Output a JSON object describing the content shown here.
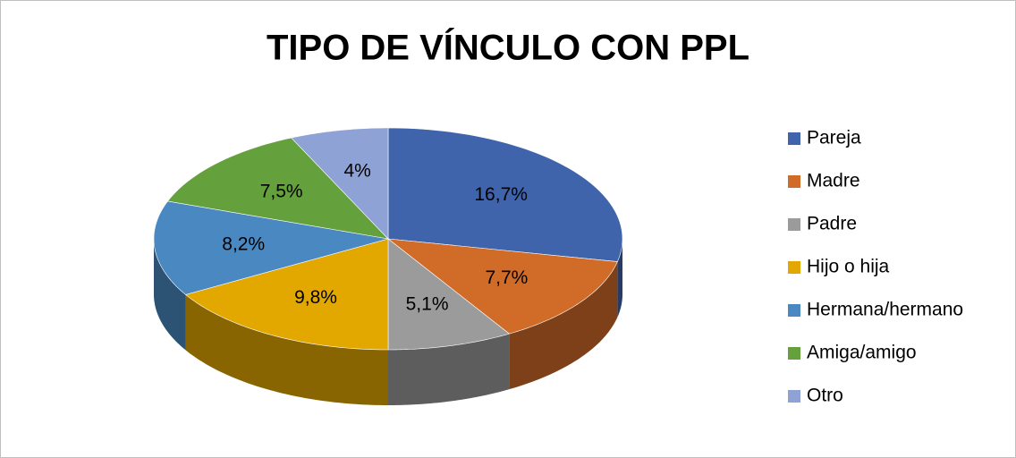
{
  "chart_data": {
    "type": "pie3d",
    "title": "TIPO DE VÍNCULO CON PPL",
    "categories": [
      "Pareja",
      "Madre",
      "Padre",
      "Hijo o hija",
      "Hermana/hermano",
      "Amiga/amigo",
      "Otro"
    ],
    "values": [
      16.7,
      7.7,
      5.1,
      9.8,
      8.2,
      7.5,
      4
    ],
    "value_labels": [
      "16,7%",
      "7,7%",
      "5,1%",
      "9,8%",
      "8,2%",
      "7,5%",
      "4%"
    ],
    "colors": [
      "#3f64ab",
      "#d06b28",
      "#9b9b9b",
      "#e3a800",
      "#4a88c2",
      "#64a03c",
      "#8fa2d6"
    ],
    "legend": "right"
  }
}
